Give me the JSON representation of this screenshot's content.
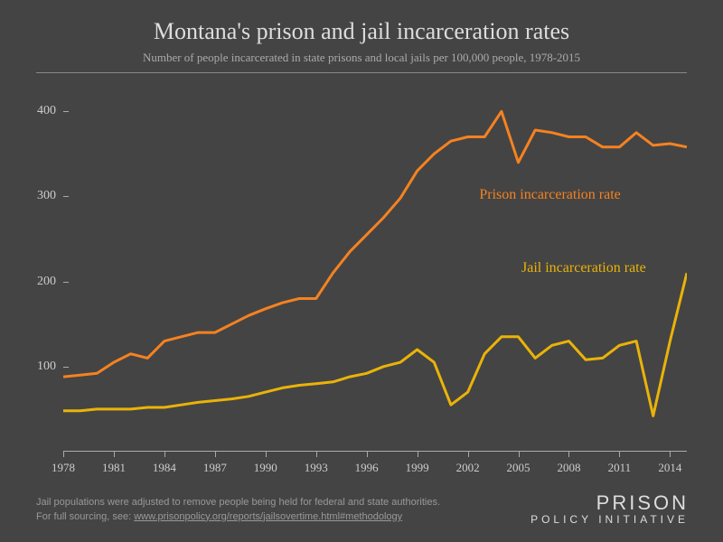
{
  "title": "Montana's prison and jail incarceration rates",
  "subtitle": "Number of people incarcerated in state prisons and local jails per 100,000 people, 1978-2015",
  "chart": {
    "type": "line",
    "background_color": "#444444",
    "axis_color": "#aaaaaa",
    "text_color": "#cccccc",
    "title_fontsize": 26,
    "subtitle_fontsize": 13,
    "label_fontsize": 14,
    "xlim": [
      1978,
      2015
    ],
    "ylim": [
      0,
      430
    ],
    "yticks": [
      100,
      200,
      300,
      400
    ],
    "xticks": [
      1978,
      1981,
      1984,
      1987,
      1990,
      1993,
      1996,
      1999,
      2002,
      2005,
      2008,
      2011,
      2014
    ],
    "line_width": 3,
    "years": [
      1978,
      1979,
      1980,
      1981,
      1982,
      1983,
      1984,
      1985,
      1986,
      1987,
      1988,
      1989,
      1990,
      1991,
      1992,
      1993,
      1994,
      1995,
      1996,
      1997,
      1998,
      1999,
      2000,
      2001,
      2002,
      2003,
      2004,
      2005,
      2006,
      2007,
      2008,
      2009,
      2010,
      2011,
      2012,
      2013,
      2014,
      2015
    ],
    "series": [
      {
        "name": "Prison incarceration rate",
        "color": "#f58220",
        "label_color": "#f58220",
        "label_pos": {
          "x": 2010,
          "y": 300
        },
        "values": [
          88,
          90,
          92,
          105,
          115,
          110,
          130,
          135,
          140,
          140,
          150,
          160,
          168,
          175,
          180,
          180,
          210,
          235,
          255,
          275,
          298,
          330,
          350,
          365,
          370,
          370,
          400,
          340,
          378,
          375,
          370,
          370,
          358,
          358,
          375,
          360,
          362,
          358
        ]
      },
      {
        "name": "Jail incarceration rate",
        "color": "#eab308",
        "label_color": "#eab308",
        "label_pos": {
          "x": 2011.5,
          "y": 215
        },
        "values": [
          48,
          48,
          50,
          50,
          50,
          52,
          52,
          55,
          58,
          60,
          62,
          65,
          70,
          75,
          78,
          80,
          82,
          88,
          92,
          100,
          105,
          120,
          105,
          55,
          70,
          115,
          135,
          135,
          110,
          125,
          130,
          108,
          110,
          125,
          130,
          42,
          130,
          210
        ]
      }
    ]
  },
  "footer_line1": "Jail populations were adjusted to remove people being held for federal and state authorities.",
  "footer_line2_prefix": "For full sourcing, see: ",
  "footer_link": "www.prisonpolicy.org/reports/jailsovertime.html#methodology",
  "logo_top": "PRISON",
  "logo_bottom": "POLICY INITIATIVE"
}
